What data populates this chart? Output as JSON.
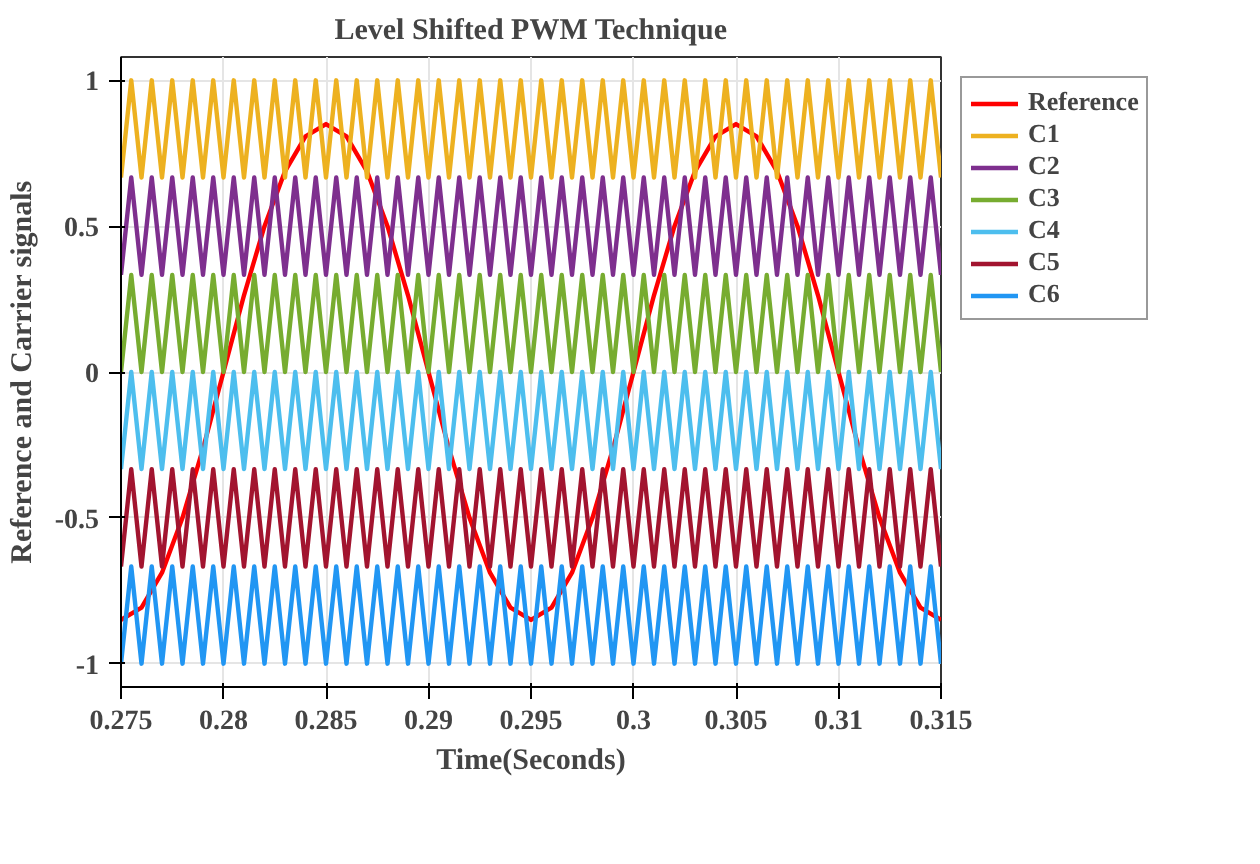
{
  "chart_data": {
    "type": "line",
    "title": "Level Shifted PWM Technique",
    "xlabel": "Time(Seconds)",
    "ylabel": "Reference and Carrier signals",
    "x": [
      0.275,
      0.2755,
      0.276,
      0.2765,
      0.277,
      0.2775,
      0.278,
      0.2785,
      0.279,
      0.2795,
      0.28,
      0.2805,
      0.281,
      0.2815,
      0.282,
      0.2825,
      0.283,
      0.2835,
      0.284,
      0.2845,
      0.285,
      0.2855,
      0.286,
      0.2865,
      0.287,
      0.2875,
      0.288,
      0.2885,
      0.289,
      0.2895,
      0.29,
      0.2905,
      0.291,
      0.2915,
      0.292,
      0.2925,
      0.293,
      0.2935,
      0.294,
      0.2945,
      0.295,
      0.2955,
      0.296,
      0.2965,
      0.297,
      0.2975,
      0.298,
      0.2985,
      0.299,
      0.2995,
      0.3,
      0.3005,
      0.301,
      0.3015,
      0.302,
      0.3025,
      0.303,
      0.3035,
      0.304,
      0.3045,
      0.305,
      0.3055,
      0.306,
      0.3065,
      0.307,
      0.3075,
      0.308,
      0.3085,
      0.309,
      0.3095,
      0.31,
      0.3105,
      0.311,
      0.3115,
      0.312,
      0.3125,
      0.313,
      0.3135,
      0.314,
      0.3145,
      0.315
    ],
    "series": [
      {
        "name": "Reference",
        "color": "#ff0000",
        "x": [
          0.275,
          0.276,
          0.277,
          0.278,
          0.279,
          0.28,
          0.281,
          0.282,
          0.283,
          0.284,
          0.285,
          0.286,
          0.287,
          0.288,
          0.289,
          0.29,
          0.291,
          0.292,
          0.293,
          0.294,
          0.295,
          0.296,
          0.297,
          0.298,
          0.299,
          0.3,
          0.301,
          0.302,
          0.303,
          0.304,
          0.305,
          0.306,
          0.307,
          0.308,
          0.309,
          0.31,
          0.311,
          0.312,
          0.313,
          0.314,
          0.315
        ],
        "values": [
          -0.85,
          -0.808,
          -0.688,
          -0.5,
          -0.263,
          0,
          0.263,
          0.5,
          0.688,
          0.808,
          0.85,
          0.808,
          0.688,
          0.5,
          0.263,
          0,
          -0.263,
          -0.5,
          -0.688,
          -0.808,
          -0.85,
          -0.808,
          -0.688,
          -0.5,
          -0.263,
          0,
          0.263,
          0.5,
          0.688,
          0.808,
          0.85,
          0.808,
          0.688,
          0.5,
          0.263,
          0,
          -0.263,
          -0.5,
          -0.688,
          -0.808,
          -0.85
        ]
      },
      {
        "name": "C1",
        "color": "#edb120",
        "values": [
          0.667,
          1,
          0.667,
          1,
          0.667,
          1,
          0.667,
          1,
          0.667,
          1,
          0.667,
          1,
          0.667,
          1,
          0.667,
          1,
          0.667,
          1,
          0.667,
          1,
          0.667,
          1,
          0.667,
          1,
          0.667,
          1,
          0.667,
          1,
          0.667,
          1,
          0.667,
          1,
          0.667,
          1,
          0.667,
          1,
          0.667,
          1,
          0.667,
          1,
          0.667,
          1,
          0.667,
          1,
          0.667,
          1,
          0.667,
          1,
          0.667,
          1,
          0.667,
          1,
          0.667,
          1,
          0.667,
          1,
          0.667,
          1,
          0.667,
          1,
          0.667,
          1,
          0.667,
          1,
          0.667,
          1,
          0.667,
          1,
          0.667,
          1,
          0.667,
          1,
          0.667,
          1,
          0.667,
          1,
          0.667,
          1,
          0.667,
          1,
          0.667
        ]
      },
      {
        "name": "C2",
        "color": "#7e2f8e",
        "values": [
          0.333,
          0.667,
          0.333,
          0.667,
          0.333,
          0.667,
          0.333,
          0.667,
          0.333,
          0.667,
          0.333,
          0.667,
          0.333,
          0.667,
          0.333,
          0.667,
          0.333,
          0.667,
          0.333,
          0.667,
          0.333,
          0.667,
          0.333,
          0.667,
          0.333,
          0.667,
          0.333,
          0.667,
          0.333,
          0.667,
          0.333,
          0.667,
          0.333,
          0.667,
          0.333,
          0.667,
          0.333,
          0.667,
          0.333,
          0.667,
          0.333,
          0.667,
          0.333,
          0.667,
          0.333,
          0.667,
          0.333,
          0.667,
          0.333,
          0.667,
          0.333,
          0.667,
          0.333,
          0.667,
          0.333,
          0.667,
          0.333,
          0.667,
          0.333,
          0.667,
          0.333,
          0.667,
          0.333,
          0.667,
          0.333,
          0.667,
          0.333,
          0.667,
          0.333,
          0.667,
          0.333,
          0.667,
          0.333,
          0.667,
          0.333,
          0.667,
          0.333,
          0.667,
          0.333,
          0.667,
          0.333
        ]
      },
      {
        "name": "C3",
        "color": "#77ac30",
        "values": [
          0,
          0.333,
          0,
          0.333,
          0,
          0.333,
          0,
          0.333,
          0,
          0.333,
          0,
          0.333,
          0,
          0.333,
          0,
          0.333,
          0,
          0.333,
          0,
          0.333,
          0,
          0.333,
          0,
          0.333,
          0,
          0.333,
          0,
          0.333,
          0,
          0.333,
          0,
          0.333,
          0,
          0.333,
          0,
          0.333,
          0,
          0.333,
          0,
          0.333,
          0,
          0.333,
          0,
          0.333,
          0,
          0.333,
          0,
          0.333,
          0,
          0.333,
          0,
          0.333,
          0,
          0.333,
          0,
          0.333,
          0,
          0.333,
          0,
          0.333,
          0,
          0.333,
          0,
          0.333,
          0,
          0.333,
          0,
          0.333,
          0,
          0.333,
          0,
          0.333,
          0,
          0.333,
          0,
          0.333,
          0,
          0.333,
          0,
          0.333,
          0
        ]
      },
      {
        "name": "C4",
        "color": "#4dbeee",
        "values": [
          -0.333,
          0,
          -0.333,
          0,
          -0.333,
          0,
          -0.333,
          0,
          -0.333,
          0,
          -0.333,
          0,
          -0.333,
          0,
          -0.333,
          0,
          -0.333,
          0,
          -0.333,
          0,
          -0.333,
          0,
          -0.333,
          0,
          -0.333,
          0,
          -0.333,
          0,
          -0.333,
          0,
          -0.333,
          0,
          -0.333,
          0,
          -0.333,
          0,
          -0.333,
          0,
          -0.333,
          0,
          -0.333,
          0,
          -0.333,
          0,
          -0.333,
          0,
          -0.333,
          0,
          -0.333,
          0,
          -0.333,
          0,
          -0.333,
          0,
          -0.333,
          0,
          -0.333,
          0,
          -0.333,
          0,
          -0.333,
          0,
          -0.333,
          0,
          -0.333,
          0,
          -0.333,
          0,
          -0.333,
          0,
          -0.333,
          0,
          -0.333,
          0,
          -0.333,
          0,
          -0.333,
          0,
          -0.333,
          0,
          -0.333
        ]
      },
      {
        "name": "C5",
        "color": "#a2142f",
        "values": [
          -0.667,
          -0.333,
          -0.667,
          -0.333,
          -0.667,
          -0.333,
          -0.667,
          -0.333,
          -0.667,
          -0.333,
          -0.667,
          -0.333,
          -0.667,
          -0.333,
          -0.667,
          -0.333,
          -0.667,
          -0.333,
          -0.667,
          -0.333,
          -0.667,
          -0.333,
          -0.667,
          -0.333,
          -0.667,
          -0.333,
          -0.667,
          -0.333,
          -0.667,
          -0.333,
          -0.667,
          -0.333,
          -0.667,
          -0.333,
          -0.667,
          -0.333,
          -0.667,
          -0.333,
          -0.667,
          -0.333,
          -0.667,
          -0.333,
          -0.667,
          -0.333,
          -0.667,
          -0.333,
          -0.667,
          -0.333,
          -0.667,
          -0.333,
          -0.667,
          -0.333,
          -0.667,
          -0.333,
          -0.667,
          -0.333,
          -0.667,
          -0.333,
          -0.667,
          -0.333,
          -0.667,
          -0.333,
          -0.667,
          -0.333,
          -0.667,
          -0.333,
          -0.667,
          -0.333,
          -0.667,
          -0.333,
          -0.667,
          -0.333,
          -0.667,
          -0.333,
          -0.667,
          -0.333,
          -0.667,
          -0.333,
          -0.667,
          -0.333,
          -0.667
        ]
      },
      {
        "name": "C6",
        "color": "#2196f3",
        "values": [
          -1,
          -0.667,
          -1,
          -0.667,
          -1,
          -0.667,
          -1,
          -0.667,
          -1,
          -0.667,
          -1,
          -0.667,
          -1,
          -0.667,
          -1,
          -0.667,
          -1,
          -0.667,
          -1,
          -0.667,
          -1,
          -0.667,
          -1,
          -0.667,
          -1,
          -0.667,
          -1,
          -0.667,
          -1,
          -0.667,
          -1,
          -0.667,
          -1,
          -0.667,
          -1,
          -0.667,
          -1,
          -0.667,
          -1,
          -0.667,
          -1,
          -0.667,
          -1,
          -0.667,
          -1,
          -0.667,
          -1,
          -0.667,
          -1,
          -0.667,
          -1,
          -0.667,
          -1,
          -0.667,
          -1,
          -0.667,
          -1,
          -0.667,
          -1,
          -0.667,
          -1,
          -0.667,
          -1,
          -0.667,
          -1,
          -0.667,
          -1,
          -0.667,
          -1,
          -0.667,
          -1,
          -0.667,
          -1,
          -0.667,
          -1,
          -0.667,
          -1,
          -0.667,
          -1,
          -0.667,
          -1
        ]
      }
    ],
    "xlim": [
      0.275,
      0.315
    ],
    "xticks": [
      0.275,
      0.28,
      0.285,
      0.29,
      0.295,
      {
        "value": 0.3,
        "label": "0.3"
      },
      0.305,
      0.31,
      0.315
    ],
    "ylim": [
      -1.08,
      1.08
    ],
    "yticks": [
      -1,
      -0.5,
      0,
      0.5,
      1
    ],
    "grid": true,
    "legend": "right",
    "line_style": "solid"
  }
}
